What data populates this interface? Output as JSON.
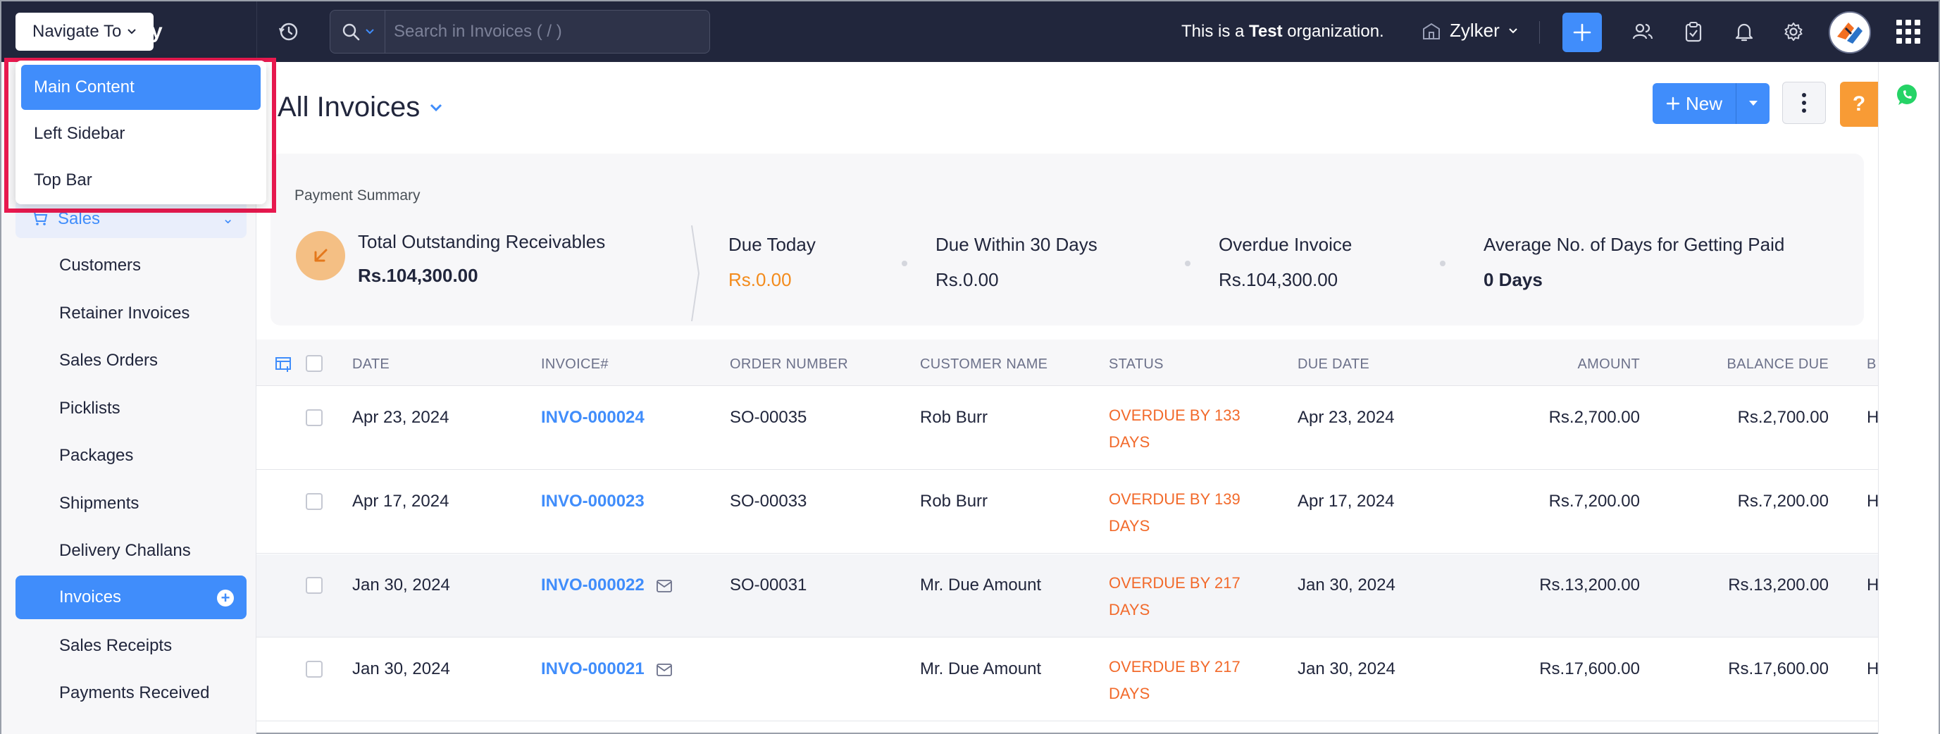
{
  "topbar": {
    "logo_text": "y",
    "search_placeholder": "Search in Invoices ( / )",
    "org_prefix": "This is a ",
    "org_bold": "Test",
    "org_suffix": " organization.",
    "org_name": "Zylker"
  },
  "navigate": {
    "button_label": "Navigate To",
    "items": [
      "Main Content",
      "Left Sidebar",
      "Top Bar"
    ]
  },
  "sidebar": {
    "sales_label": "Sales",
    "items": [
      "Customers",
      "Retainer Invoices",
      "Sales Orders",
      "Picklists",
      "Packages",
      "Shipments",
      "Delivery Challans",
      "Invoices",
      "Sales Receipts",
      "Payments Received"
    ],
    "active_item": "Invoices"
  },
  "main": {
    "title": "All Invoices",
    "new_button": "New",
    "help_label": "?"
  },
  "summary": {
    "title": "Payment Summary",
    "total_label": "Total Outstanding Receivables",
    "total_value": "Rs.104,300.00",
    "due_today_label": "Due Today",
    "due_today_value": "Rs.0.00",
    "due_30_label": "Due Within 30 Days",
    "due_30_value": "Rs.0.00",
    "overdue_label": "Overdue Invoice",
    "overdue_value": "Rs.104,300.00",
    "avg_days_label": "Average No. of Days for Getting Paid",
    "avg_days_value": "0 Days"
  },
  "table": {
    "headers": {
      "date": "DATE",
      "invoice": "INVOICE#",
      "order": "ORDER NUMBER",
      "customer": "CUSTOMER NAME",
      "status": "STATUS",
      "due_date": "DUE DATE",
      "amount": "AMOUNT",
      "balance": "BALANCE DUE",
      "extra": "B"
    },
    "rows": [
      {
        "date": "Apr 23, 2024",
        "invoice": "INVO-000024",
        "order": "SO-00035",
        "customer": "Rob Burr",
        "status_1": "OVERDUE BY 133",
        "status_2": "DAYS",
        "due_date": "Apr 23, 2024",
        "amount": "Rs.2,700.00",
        "balance": "Rs.2,700.00",
        "extra": "H",
        "mail": false
      },
      {
        "date": "Apr 17, 2024",
        "invoice": "INVO-000023",
        "order": "SO-00033",
        "customer": "Rob Burr",
        "status_1": "OVERDUE BY 139",
        "status_2": "DAYS",
        "due_date": "Apr 17, 2024",
        "amount": "Rs.7,200.00",
        "balance": "Rs.7,200.00",
        "extra": "H",
        "mail": false
      },
      {
        "date": "Jan 30, 2024",
        "invoice": "INVO-000022",
        "order": "SO-00031",
        "customer": "Mr. Due Amount",
        "status_1": "OVERDUE BY 217",
        "status_2": "DAYS",
        "due_date": "Jan 30, 2024",
        "amount": "Rs.13,200.00",
        "balance": "Rs.13,200.00",
        "extra": "H",
        "mail": true
      },
      {
        "date": "Jan 30, 2024",
        "invoice": "INVO-000021",
        "order": "",
        "customer": "Mr. Due Amount",
        "status_1": "OVERDUE BY 217",
        "status_2": "DAYS",
        "due_date": "Jan 30, 2024",
        "amount": "Rs.17,600.00",
        "balance": "Rs.17,600.00",
        "extra": "H",
        "mail": true
      }
    ]
  },
  "colors": {
    "topbar": "#21263c",
    "accent": "#408dfb",
    "overdue": "#f26a2b",
    "highlight": "#e8194f"
  }
}
